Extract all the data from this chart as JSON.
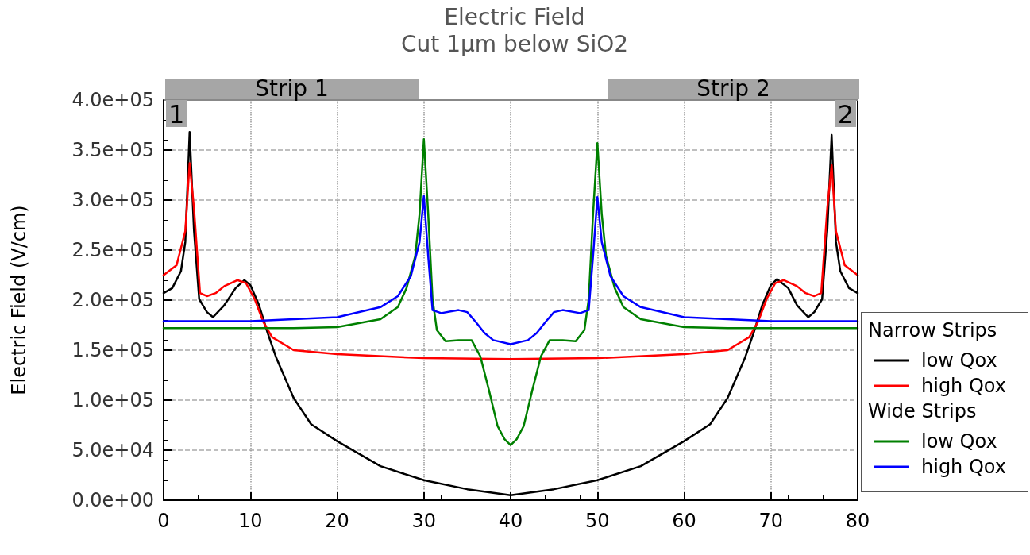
{
  "chart_data": {
    "type": "line",
    "title": "Electric Field",
    "subtitle": "Cut 1µm below SiO2",
    "ylabel": "Electric Field (V/cm)",
    "xlim": [
      0,
      80
    ],
    "xticks": [
      0,
      10,
      20,
      30,
      40,
      50,
      60,
      70,
      80
    ],
    "ylim": [
      0,
      400000
    ],
    "yticks": [
      {
        "value": 0,
        "label": "0.0e+00"
      },
      {
        "value": 50000,
        "label": "5.0e+04"
      },
      {
        "value": 100000,
        "label": "1.0e+05"
      },
      {
        "value": 150000,
        "label": "1.5e+05"
      },
      {
        "value": 200000,
        "label": "2.0e+05"
      },
      {
        "value": 250000,
        "label": "2.5e+05"
      },
      {
        "value": 300000,
        "label": "3.0e+05"
      },
      {
        "value": 350000,
        "label": "3.5e+05"
      },
      {
        "value": 400000,
        "label": "4.0e+05"
      }
    ],
    "grid": true,
    "legend": "right",
    "marker": "none",
    "line_style": "solid",
    "series": [
      {
        "name": "low Qox",
        "color": "#000000",
        "x": [
          0,
          1,
          2,
          2.5,
          3,
          3.5,
          4.1,
          5,
          5.7,
          7,
          8.3,
          9.3,
          10,
          11,
          12,
          13,
          15,
          17,
          20,
          25,
          30,
          35,
          40,
          45,
          50,
          55,
          60,
          63,
          65,
          67,
          68,
          69,
          70,
          70.7,
          72,
          73,
          74.3,
          75,
          75.9,
          76.5,
          77,
          77.5,
          78,
          79,
          80
        ],
        "values": [
          207000,
          212000,
          229000,
          258000,
          368000,
          270000,
          201000,
          188000,
          183000,
          195000,
          212000,
          220000,
          215000,
          195000,
          167000,
          142000,
          102000,
          76000,
          59000,
          34000,
          20000,
          11000,
          5000,
          11000,
          20000,
          34000,
          59000,
          76000,
          102000,
          142000,
          167000,
          195000,
          215000,
          221000,
          212000,
          195000,
          183000,
          188000,
          201000,
          270000,
          365000,
          258000,
          229000,
          212000,
          207000
        ]
      },
      {
        "name": "high Qox",
        "color": "#ff0000",
        "x": [
          0,
          1.5,
          2.5,
          3,
          3.5,
          4.2,
          5,
          6,
          7,
          8.5,
          9.5,
          10.5,
          11.5,
          12.5,
          15,
          20,
          30,
          40,
          50,
          60,
          65,
          67.5,
          68.5,
          69.5,
          70.5,
          71.5,
          73,
          74,
          75,
          75.8,
          76.5,
          77,
          77.5,
          78.5,
          80
        ],
        "values": [
          225000,
          235000,
          269000,
          337000,
          292000,
          207000,
          204000,
          207000,
          214000,
          220000,
          217000,
          201000,
          178000,
          163000,
          150000,
          146000,
          142000,
          141000,
          142000,
          146000,
          150000,
          163000,
          178000,
          201000,
          217000,
          220000,
          214000,
          207000,
          204000,
          207000,
          292000,
          335000,
          269000,
          235000,
          225000
        ]
      },
      {
        "name": "low Qox",
        "color": "#008000",
        "x": [
          0,
          15,
          20,
          25,
          27,
          28,
          29,
          29.5,
          30,
          30.5,
          31,
          31.5,
          32.5,
          34,
          35.5,
          36.5,
          37.5,
          38.5,
          39.3,
          40,
          40.7,
          41.5,
          42.5,
          43.5,
          44.5,
          46,
          47.5,
          48.5,
          49,
          49.5,
          50,
          50.5,
          51,
          52,
          53,
          55,
          60,
          65,
          80
        ],
        "values": [
          172000,
          172000,
          173000,
          181000,
          193000,
          212000,
          244000,
          286000,
          361000,
          286000,
          201000,
          170000,
          159000,
          160000,
          160000,
          144000,
          110000,
          74000,
          61000,
          55000,
          61000,
          74000,
          110000,
          144000,
          160000,
          160000,
          159000,
          170000,
          201000,
          286000,
          357000,
          286000,
          244000,
          212000,
          193000,
          181000,
          173000,
          172000,
          172000
        ]
      },
      {
        "name": "high Qox",
        "color": "#0000ff",
        "x": [
          0,
          10,
          20,
          25,
          27,
          28.5,
          29.5,
          30,
          30.5,
          31,
          32,
          34,
          35,
          36,
          37,
          38,
          40,
          42,
          43,
          44,
          45,
          46,
          48,
          49,
          49.5,
          50,
          50.5,
          51.5,
          53,
          55,
          60,
          70,
          80
        ],
        "values": [
          179000,
          179000,
          183000,
          193000,
          204000,
          224000,
          258000,
          304000,
          244000,
          190000,
          187000,
          190000,
          188000,
          178000,
          167000,
          160000,
          156000,
          160000,
          167000,
          178000,
          188000,
          190000,
          187000,
          190000,
          244000,
          303000,
          258000,
          224000,
          204000,
          193000,
          183000,
          179000,
          179000
        ]
      }
    ],
    "annotations": [
      "Narrow Strips",
      "Wide Strips",
      "1",
      "2",
      "Strip 1",
      "Strip 2"
    ]
  }
}
